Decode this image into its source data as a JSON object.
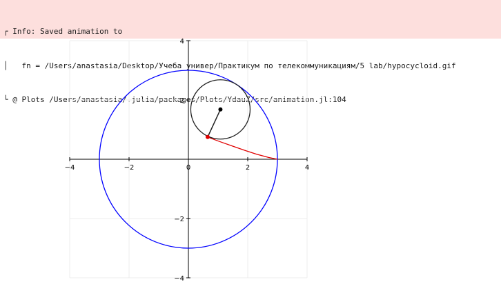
{
  "log": {
    "lines": [
      "┌ Info: Saved animation to",
      "│   fn = /Users/anastasia/Desktop/Учеба универ/Практикум по телекоммуникациям/5 lab/hypocycloid.gif",
      "└ @ Plots /Users/anastasia/.julia/packages/Plots/YdauZ/src/animation.jl:104"
    ]
  },
  "chart_data": {
    "type": "line",
    "title": "",
    "xlabel": "",
    "ylabel": "",
    "xlim": [
      -4,
      4
    ],
    "ylim": [
      -4,
      4
    ],
    "x_ticks": [
      -4,
      -2,
      0,
      2,
      4
    ],
    "y_ticks": [
      -4,
      -2,
      0,
      2,
      4
    ],
    "x_tick_labels": [
      "−4",
      "−2",
      "0",
      "2",
      "4"
    ],
    "y_tick_labels": [
      "−4",
      "−2",
      "",
      "2",
      "4"
    ],
    "grid": true,
    "legend": "none",
    "large_circle": {
      "center": [
        0,
        0
      ],
      "radius": 3,
      "color": "#0000ff"
    },
    "small_circle": {
      "center": [
        1.08,
        1.68
      ],
      "radius": 1.0,
      "color": "#222222"
    },
    "radius_segment": {
      "from": [
        1.08,
        1.68
      ],
      "to": [
        0.65,
        0.75
      ],
      "color": "#222222"
    },
    "center_point": {
      "x": 1.08,
      "y": 1.68,
      "color": "#000000"
    },
    "tracing_point": {
      "x": 0.65,
      "y": 0.75,
      "color": "#e00000"
    },
    "trace": {
      "color": "#e00000",
      "x": [
        3.0,
        2.7,
        2.3,
        1.9,
        1.5,
        1.1,
        0.8,
        0.65
      ],
      "y": [
        0.0,
        0.06,
        0.17,
        0.3,
        0.44,
        0.58,
        0.69,
        0.75
      ]
    }
  }
}
